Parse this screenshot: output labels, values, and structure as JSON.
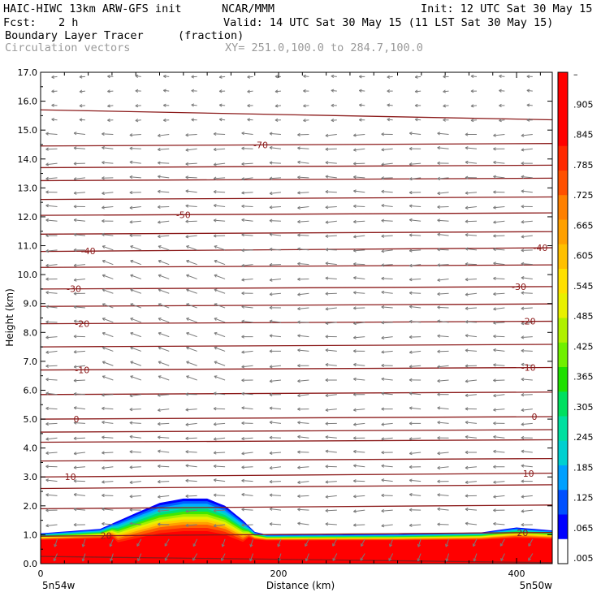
{
  "header": {
    "model_line": "HAIC-HIWC 13km ARW-GFS init",
    "org": "NCAR/MMM",
    "init_line": "Init: 12 UTC Sat 30 May 15",
    "fcst_label": "Fcst:",
    "fcst_value": "2 h",
    "valid_line": "Valid: 14 UTC Sat 30 May 15 (11 LST Sat 30 May 15)",
    "field_name": "Boundary Layer Tracer",
    "field_units": "(fraction)",
    "vector_label": "Circulation vectors",
    "xsec_label": "XY= 251.0,100.0 to 284.7,100.0"
  },
  "chart_data": {
    "type": "cross-section",
    "xlabel": "Distance (km)",
    "ylabel": "Height (km)",
    "xlim": [
      0,
      430
    ],
    "ylim": [
      0,
      17
    ],
    "x_ticks": [
      "0",
      "200",
      "400"
    ],
    "x_tick_values": [
      0,
      200,
      400
    ],
    "y_ticks": [
      "0.0",
      "1.0",
      "2.0",
      "3.0",
      "4.0",
      "5.0",
      "6.0",
      "7.0",
      "8.0",
      "9.0",
      "10.0",
      "11.0",
      "12.0",
      "13.0",
      "14.0",
      "15.0",
      "16.0",
      "17.0"
    ],
    "left_endpoint": "5n54w",
    "right_endpoint": "5n50w",
    "colorbar_labels": [
      ".005",
      ".065",
      ".125",
      ".185",
      ".245",
      ".305",
      ".365",
      ".425",
      ".485",
      ".545",
      ".605",
      ".665",
      ".725",
      ".785",
      ".845",
      ".905",
      "–"
    ],
    "colorbar_colors": [
      "#ffffff",
      "#0000ff",
      "#0050ff",
      "#00a0ff",
      "#00d0d0",
      "#00e0a0",
      "#00e060",
      "#20e000",
      "#70f000",
      "#b0f000",
      "#e8f000",
      "#ffe000",
      "#ffc000",
      "#ffa000",
      "#ff8000",
      "#ff5000",
      "#ff2800",
      "#ff0000",
      "#ff0000",
      "#ff0000"
    ],
    "tracer_top_profile": {
      "x": [
        0,
        50,
        80,
        100,
        120,
        140,
        155,
        170,
        180,
        190,
        200,
        300,
        370,
        400,
        430
      ],
      "top_km": [
        1.05,
        1.2,
        1.75,
        2.1,
        2.25,
        2.25,
        2.0,
        1.5,
        1.1,
        1.0,
        1.0,
        1.02,
        1.08,
        1.25,
        1.15
      ]
    },
    "temperature_contours": [
      {
        "height": 0.25,
        "slope": -0.0005
      },
      {
        "height": 0.95,
        "slope": 0.0003,
        "label": "20",
        "label_x": [
          55,
          405
        ]
      },
      {
        "height": 1.9,
        "slope": 0.0003
      },
      {
        "height": 2.6,
        "slope": 0.0003
      },
      {
        "height": 3.0,
        "slope": 0.0003,
        "label": "10",
        "label_x": [
          25,
          410
        ]
      },
      {
        "height": 3.55,
        "slope": 0.0002
      },
      {
        "height": 4.2,
        "slope": 0.0002
      },
      {
        "height": 4.55,
        "slope": 0.0002
      },
      {
        "height": 5.0,
        "slope": 0.0002,
        "label": "0",
        "label_x": [
          30,
          415
        ]
      },
      {
        "height": 5.85,
        "slope": 0.0002
      },
      {
        "height": 6.7,
        "slope": 0.0002,
        "label": "-10",
        "label_x": [
          35,
          410
        ]
      },
      {
        "height": 7.5,
        "slope": 0.0002
      },
      {
        "height": 8.3,
        "slope": 0.0002,
        "label": "-20",
        "label_x": [
          35,
          410
        ]
      },
      {
        "height": 8.9,
        "slope": 0.0002
      },
      {
        "height": 9.5,
        "slope": 0.0002,
        "label": "-30",
        "label_x": [
          28,
          402
        ]
      },
      {
        "height": 10.25,
        "slope": 0.0002
      },
      {
        "height": 10.8,
        "slope": 0.0003,
        "label": "-40",
        "label_x": [
          40,
          420
        ]
      },
      {
        "height": 11.4,
        "slope": 0.0002
      },
      {
        "height": 12.05,
        "slope": 0.0002,
        "label": "-50",
        "label_x": [
          120
        ]
      },
      {
        "height": 12.6,
        "slope": 0.0002
      },
      {
        "height": 13.25,
        "slope": 0.0002
      },
      {
        "height": 13.7,
        "slope": 0.0002
      },
      {
        "height": 14.45,
        "slope": 0.0002,
        "label": "-70",
        "label_x": [
          185
        ]
      },
      {
        "height": 15.7,
        "slope": -0.0008
      }
    ],
    "line_color": "#8b1a1a"
  }
}
